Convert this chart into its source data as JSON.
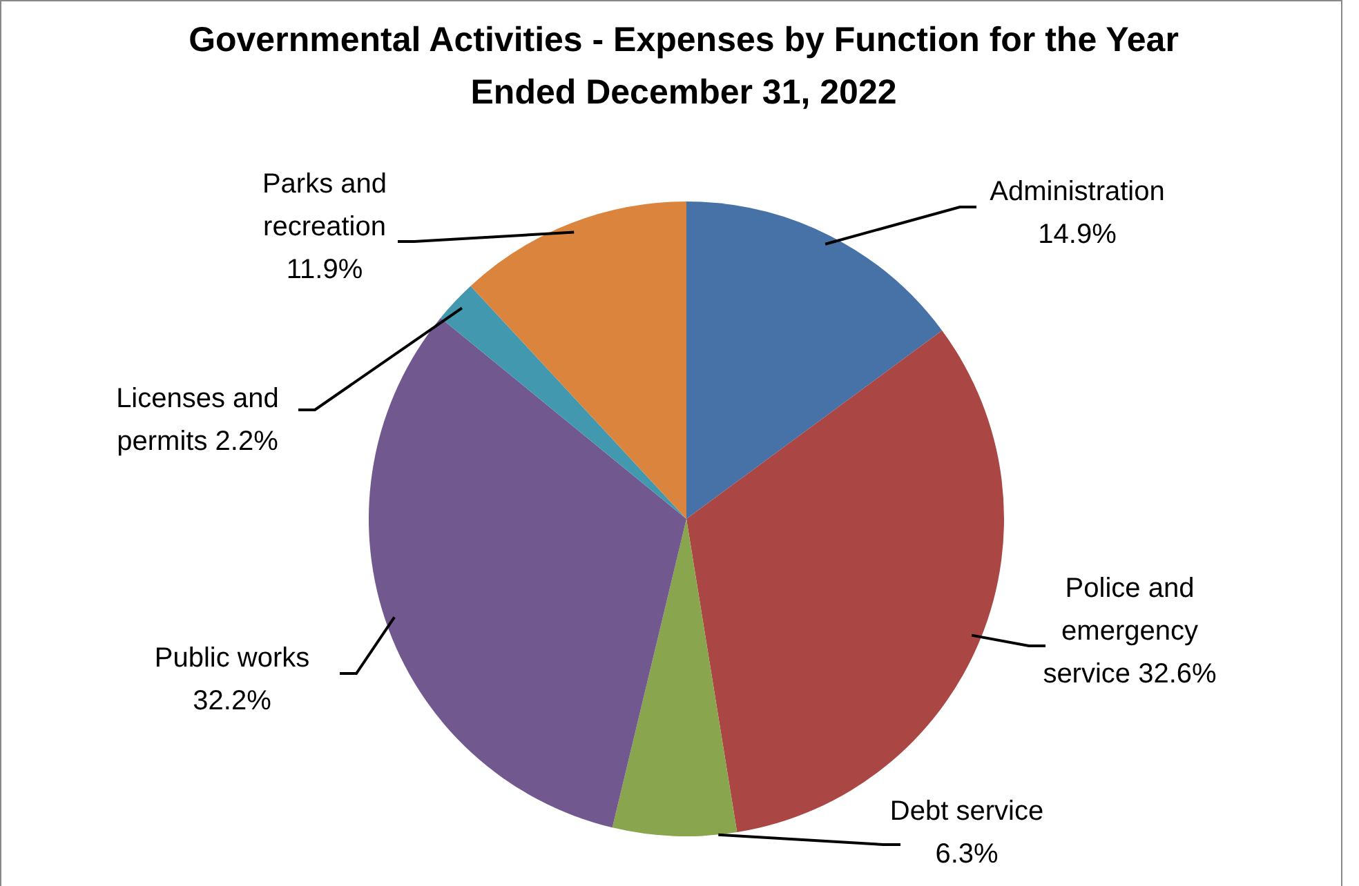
{
  "chart_data": {
    "type": "pie",
    "title": "Governmental Activities - Expenses by Function for the Year Ended December 31, 2022",
    "categories": [
      "Administration",
      "Police and emergency service",
      "Debt service",
      "Public works",
      "Licenses and permits",
      "Parks and recreation"
    ],
    "values": [
      14.9,
      32.6,
      6.3,
      32.2,
      2.2,
      11.9
    ],
    "colors": [
      "#4672a8",
      "#aa4643",
      "#89a54e",
      "#71588f",
      "#4198af",
      "#db843d"
    ],
    "value_labels": [
      "14.9%",
      "32.6%",
      "6.3%",
      "32.2%",
      "2.2%",
      "11.9%"
    ],
    "legend": false
  }
}
